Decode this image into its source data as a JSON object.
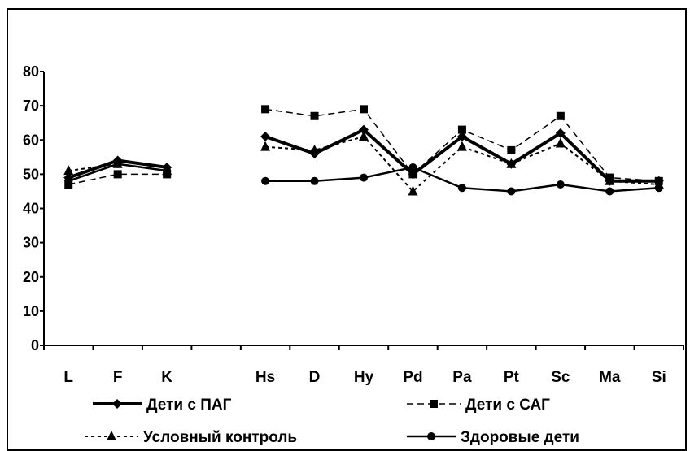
{
  "chart_data": {
    "type": "line",
    "title": "",
    "xlabel": "",
    "ylabel": "",
    "categories": [
      "L",
      "F",
      "K",
      "",
      "Hs",
      "D",
      "Hy",
      "Pd",
      "Pa",
      "Pt",
      "Sc",
      "Ma",
      "Si"
    ],
    "ylim": [
      0,
      80
    ],
    "yticks": [
      "0",
      "10",
      "20",
      "30",
      "40",
      "50",
      "60",
      "70",
      "80"
    ],
    "grid": false,
    "legend_position": "bottom",
    "series": [
      {
        "name": "Дети с ПАГ",
        "marker": "diamond",
        "dash": "solid-thick",
        "color": "#000000",
        "values": [
          49,
          54,
          52,
          null,
          61,
          56,
          63,
          50,
          61,
          53,
          62,
          48,
          48
        ]
      },
      {
        "name": "Дети с САГ",
        "marker": "square",
        "dash": "dash-long",
        "color": "#000000",
        "values": [
          47,
          50,
          50,
          null,
          69,
          67,
          69,
          50,
          63,
          57,
          67,
          49,
          48
        ]
      },
      {
        "name": "Условный контроль",
        "marker": "triangle",
        "dash": "dash-short",
        "color": "#000000",
        "values": [
          51,
          53,
          51,
          null,
          58,
          57,
          61,
          45,
          58,
          53,
          59,
          48,
          47
        ]
      },
      {
        "name": "Здоровые дети",
        "marker": "circle",
        "dash": "solid",
        "color": "#000000",
        "values": [
          48,
          53,
          51,
          null,
          48,
          48,
          49,
          52,
          46,
          45,
          47,
          45,
          46
        ]
      }
    ]
  }
}
